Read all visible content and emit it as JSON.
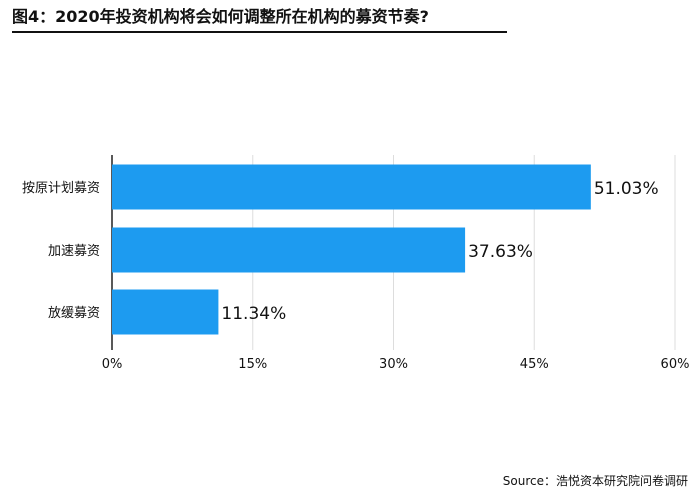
{
  "title": "图4：2020年投资机构将会如何调整所在机构的募资节奏?",
  "source": "Source：浩悦资本研究院问卷调研",
  "chart_data": {
    "type": "bar",
    "orientation": "horizontal",
    "categories": [
      "按原计划募资",
      "加速募资",
      "放缓募资"
    ],
    "values": [
      51.03,
      37.63,
      11.34
    ],
    "value_labels": [
      "51.03%",
      "37.63%",
      "11.34%"
    ],
    "xlim": [
      0,
      60
    ],
    "x_ticks": [
      0,
      15,
      30,
      45,
      60
    ],
    "x_tick_labels": [
      "0%",
      "15%",
      "30%",
      "45%",
      "60%"
    ],
    "grid": true,
    "bar_color": "#1d9bf0"
  }
}
